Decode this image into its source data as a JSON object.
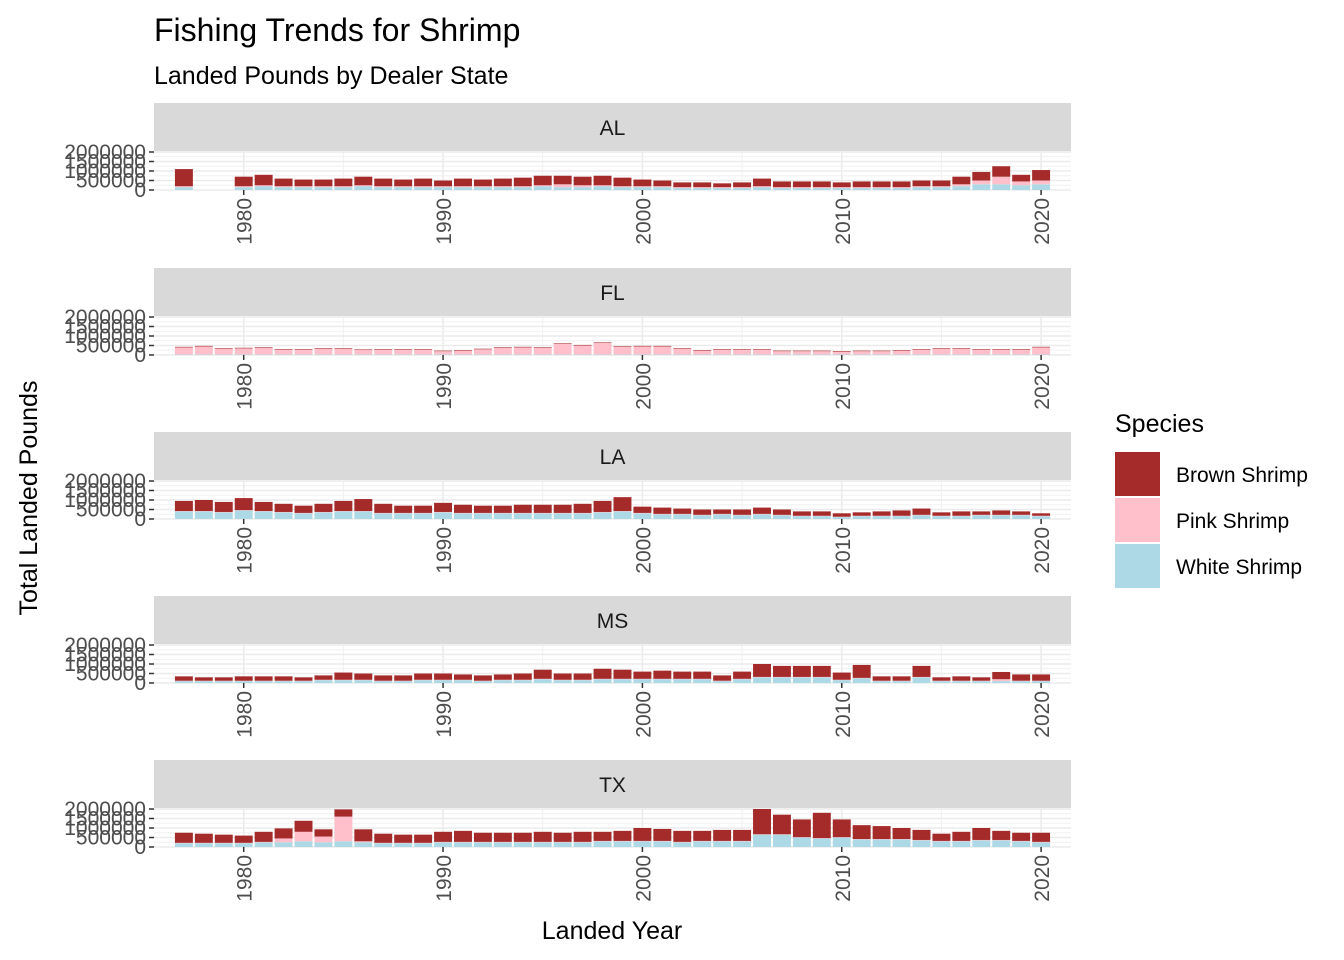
{
  "chart_data": {
    "type": "bar",
    "stacked": true,
    "title": "Fishing Trends for Shrimp",
    "subtitle": "Landed Pounds by Dealer State",
    "xlabel": "Landed Year",
    "ylabel": "Total Landed Pounds",
    "x_ticks": [
      "1980",
      "1990",
      "2000",
      "2010",
      "2020"
    ],
    "y_ticks": [
      "0",
      "500000",
      "1000000",
      "1500000",
      "2000000"
    ],
    "ylim": [
      0,
      2000000
    ],
    "xlim": [
      1975.5,
      2021.5
    ],
    "grid": true,
    "legend": {
      "title": "Species",
      "position": "right",
      "entries": [
        {
          "name": "Brown Shrimp",
          "color": "#A52A2A"
        },
        {
          "name": "Pink Shrimp",
          "color": "#FFC0CB"
        },
        {
          "name": "White Shrimp",
          "color": "#ADD8E6"
        }
      ]
    },
    "years": [
      1977,
      1978,
      1979,
      1980,
      1981,
      1982,
      1983,
      1984,
      1985,
      1986,
      1987,
      1988,
      1989,
      1990,
      1991,
      1992,
      1993,
      1994,
      1995,
      1996,
      1997,
      1998,
      1999,
      2000,
      2001,
      2002,
      2003,
      2004,
      2005,
      2006,
      2007,
      2008,
      2009,
      2010,
      2011,
      2012,
      2013,
      2014,
      2015,
      2016,
      2017,
      2018,
      2019,
      2020
    ],
    "panels": [
      {
        "state": "AL",
        "series": [
          {
            "name": "White Shrimp",
            "values": [
              150000,
              0,
              0,
              150000,
              200000,
              150000,
              150000,
              150000,
              150000,
              200000,
              150000,
              150000,
              150000,
              150000,
              150000,
              150000,
              150000,
              150000,
              200000,
              150000,
              150000,
              200000,
              150000,
              150000,
              150000,
              100000,
              100000,
              100000,
              100000,
              150000,
              100000,
              100000,
              100000,
              100000,
              100000,
              100000,
              100000,
              150000,
              150000,
              200000,
              300000,
              300000,
              250000,
              300000
            ]
          },
          {
            "name": "Pink Shrimp",
            "values": [
              50000,
              0,
              0,
              50000,
              50000,
              50000,
              50000,
              50000,
              50000,
              50000,
              50000,
              50000,
              50000,
              50000,
              50000,
              50000,
              50000,
              50000,
              50000,
              150000,
              100000,
              50000,
              50000,
              50000,
              50000,
              50000,
              50000,
              50000,
              50000,
              50000,
              50000,
              50000,
              50000,
              50000,
              50000,
              50000,
              50000,
              50000,
              50000,
              100000,
              200000,
              400000,
              200000,
              200000
            ]
          },
          {
            "name": "Brown Shrimp",
            "values": [
              900000,
              0,
              0,
              500000,
              550000,
              400000,
              350000,
              350000,
              400000,
              450000,
              400000,
              350000,
              400000,
              300000,
              400000,
              350000,
              400000,
              450000,
              500000,
              450000,
              450000,
              500000,
              450000,
              350000,
              300000,
              250000,
              250000,
              200000,
              250000,
              400000,
              300000,
              300000,
              300000,
              250000,
              300000,
              300000,
              300000,
              300000,
              300000,
              400000,
              450000,
              550000,
              350000,
              550000
            ]
          }
        ]
      },
      {
        "state": "FL",
        "series": [
          {
            "name": "White Shrimp",
            "values": [
              30000,
              30000,
              30000,
              30000,
              30000,
              30000,
              30000,
              30000,
              30000,
              30000,
              30000,
              30000,
              30000,
              30000,
              30000,
              30000,
              30000,
              30000,
              30000,
              30000,
              30000,
              30000,
              30000,
              30000,
              30000,
              30000,
              30000,
              30000,
              30000,
              30000,
              30000,
              30000,
              30000,
              30000,
              30000,
              30000,
              30000,
              30000,
              30000,
              30000,
              30000,
              30000,
              30000,
              30000
            ]
          },
          {
            "name": "Pink Shrimp",
            "values": [
              370000,
              420000,
              300000,
              320000,
              350000,
              250000,
              250000,
              300000,
              300000,
              230000,
              250000,
              250000,
              250000,
              170000,
              200000,
              270000,
              350000,
              370000,
              350000,
              550000,
              470000,
              600000,
              400000,
              420000,
              420000,
              300000,
              200000,
              250000,
              250000,
              250000,
              170000,
              170000,
              170000,
              150000,
              170000,
              170000,
              200000,
              250000,
              300000,
              300000,
              250000,
              250000,
              250000,
              370000
            ]
          },
          {
            "name": "Brown Shrimp",
            "values": [
              30000,
              30000,
              30000,
              30000,
              30000,
              30000,
              30000,
              30000,
              30000,
              30000,
              30000,
              30000,
              30000,
              30000,
              30000,
              30000,
              30000,
              30000,
              30000,
              30000,
              30000,
              30000,
              30000,
              30000,
              30000,
              30000,
              30000,
              30000,
              30000,
              30000,
              30000,
              30000,
              30000,
              30000,
              30000,
              30000,
              30000,
              30000,
              30000,
              30000,
              30000,
              30000,
              30000,
              30000
            ]
          }
        ]
      },
      {
        "state": "LA",
        "series": [
          {
            "name": "White Shrimp",
            "values": [
              400000,
              400000,
              350000,
              450000,
              400000,
              350000,
              300000,
              350000,
              400000,
              400000,
              300000,
              300000,
              300000,
              350000,
              300000,
              300000,
              300000,
              300000,
              300000,
              300000,
              300000,
              350000,
              400000,
              300000,
              250000,
              250000,
              200000,
              250000,
              200000,
              250000,
              200000,
              150000,
              150000,
              100000,
              150000,
              150000,
              150000,
              200000,
              150000,
              150000,
              200000,
              200000,
              200000,
              150000
            ]
          },
          {
            "name": "Pink Shrimp",
            "values": [
              20000,
              20000,
              20000,
              20000,
              20000,
              20000,
              20000,
              20000,
              20000,
              20000,
              20000,
              20000,
              20000,
              20000,
              20000,
              20000,
              20000,
              20000,
              20000,
              20000,
              20000,
              20000,
              20000,
              20000,
              20000,
              20000,
              20000,
              20000,
              20000,
              20000,
              20000,
              20000,
              20000,
              20000,
              20000,
              20000,
              20000,
              20000,
              20000,
              20000,
              20000,
              20000,
              20000,
              20000
            ]
          },
          {
            "name": "Brown Shrimp",
            "values": [
              530000,
              580000,
              530000,
              630000,
              480000,
              430000,
              380000,
              430000,
              530000,
              630000,
              480000,
              380000,
              380000,
              480000,
              430000,
              380000,
              380000,
              430000,
              430000,
              430000,
              480000,
              580000,
              730000,
              330000,
              330000,
              280000,
              280000,
              230000,
              280000,
              330000,
              280000,
              230000,
              230000,
              180000,
              180000,
              230000,
              280000,
              330000,
              180000,
              230000,
              180000,
              230000,
              180000,
              130000
            ]
          }
        ]
      },
      {
        "state": "MS",
        "series": [
          {
            "name": "White Shrimp",
            "values": [
              100000,
              100000,
              100000,
              100000,
              100000,
              100000,
              100000,
              150000,
              150000,
              150000,
              100000,
              100000,
              150000,
              150000,
              150000,
              100000,
              150000,
              150000,
              200000,
              150000,
              150000,
              200000,
              200000,
              200000,
              200000,
              200000,
              200000,
              100000,
              200000,
              300000,
              300000,
              300000,
              300000,
              150000,
              250000,
              100000,
              100000,
              300000,
              100000,
              100000,
              100000,
              100000,
              100000,
              100000
            ]
          },
          {
            "name": "Pink Shrimp",
            "values": [
              20000,
              20000,
              20000,
              20000,
              20000,
              20000,
              20000,
              20000,
              20000,
              20000,
              20000,
              20000,
              20000,
              20000,
              20000,
              20000,
              20000,
              20000,
              20000,
              20000,
              20000,
              20000,
              20000,
              20000,
              20000,
              20000,
              20000,
              20000,
              20000,
              20000,
              20000,
              20000,
              20000,
              20000,
              20000,
              20000,
              20000,
              20000,
              20000,
              20000,
              20000,
              100000,
              20000,
              20000
            ]
          },
          {
            "name": "Brown Shrimp",
            "values": [
              230000,
              180000,
              180000,
              230000,
              230000,
              230000,
              180000,
              230000,
              380000,
              330000,
              280000,
              280000,
              330000,
              330000,
              280000,
              280000,
              280000,
              330000,
              480000,
              330000,
              330000,
              530000,
              480000,
              380000,
              430000,
              380000,
              380000,
              280000,
              380000,
              680000,
              580000,
              580000,
              580000,
              380000,
              680000,
              230000,
              230000,
              580000,
              180000,
              230000,
              180000,
              380000,
              330000,
              330000
            ]
          }
        ]
      },
      {
        "state": "TX",
        "series": [
          {
            "name": "White Shrimp",
            "values": [
              200000,
              200000,
              200000,
              200000,
              250000,
              250000,
              300000,
              250000,
              300000,
              250000,
              200000,
              200000,
              200000,
              250000,
              250000,
              250000,
              250000,
              250000,
              250000,
              250000,
              250000,
              300000,
              300000,
              300000,
              300000,
              250000,
              300000,
              300000,
              300000,
              650000,
              650000,
              500000,
              450000,
              500000,
              400000,
              400000,
              400000,
              350000,
              300000,
              300000,
              350000,
              350000,
              300000,
              250000
            ]
          },
          {
            "name": "Pink Shrimp",
            "values": [
              20000,
              20000,
              20000,
              20000,
              20000,
              200000,
              500000,
              300000,
              1300000,
              50000,
              20000,
              20000,
              20000,
              20000,
              20000,
              20000,
              20000,
              20000,
              20000,
              20000,
              20000,
              20000,
              20000,
              20000,
              20000,
              20000,
              20000,
              20000,
              20000,
              20000,
              20000,
              20000,
              20000,
              20000,
              20000,
              20000,
              20000,
              20000,
              20000,
              20000,
              20000,
              20000,
              20000,
              20000
            ]
          },
          {
            "name": "Brown Shrimp",
            "values": [
              530000,
              480000,
              430000,
              380000,
              530000,
              530000,
              580000,
              380000,
              380000,
              630000,
              480000,
              430000,
              430000,
              530000,
              580000,
              480000,
              480000,
              480000,
              530000,
              480000,
              530000,
              480000,
              530000,
              680000,
              630000,
              580000,
              530000,
              580000,
              580000,
              1330000,
              1030000,
              930000,
              1330000,
              930000,
              730000,
              680000,
              580000,
              530000,
              380000,
              480000,
              630000,
              480000,
              430000,
              480000
            ]
          }
        ]
      }
    ]
  }
}
